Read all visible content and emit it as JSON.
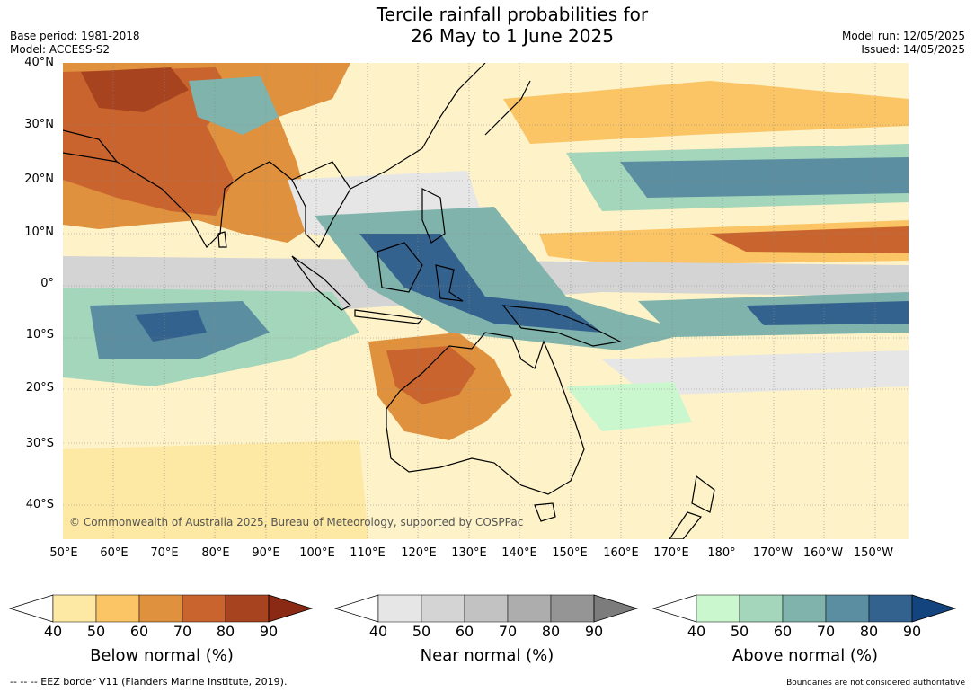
{
  "header": {
    "title_line1": "Tercile rainfall probabilities for",
    "title_line2": "26 May to 1 June 2025",
    "base_period": "Base period: 1981-2018",
    "model": "Model: ACCESS-S2",
    "model_run": "Model run: 12/05/2025",
    "issued": "Issued: 14/05/2025"
  },
  "map": {
    "lat_labels": [
      "40°N",
      "30°N",
      "20°N",
      "10°N",
      "0°",
      "10°S",
      "20°S",
      "30°S",
      "40°S"
    ],
    "lon_labels": [
      "50°E",
      "60°E",
      "70°E",
      "80°E",
      "90°E",
      "100°E",
      "110°E",
      "120°E",
      "130°E",
      "140°E",
      "150°E",
      "160°E",
      "170°E",
      "180°",
      "170°W",
      "160°W",
      "150°W"
    ],
    "copyright": "© Commonwealth of Australia 2025, Bureau of Meteorology, supported by COSPPac",
    "colors": {
      "below": [
        "#fde9a3",
        "#fbc464",
        "#e0913e",
        "#c9642e",
        "#a8431f",
        "#8a2a14"
      ],
      "near": [
        "#e6e6e6",
        "#d4d4d4",
        "#c2c2c2",
        "#adadad",
        "#959595",
        "#7c7c7c"
      ],
      "above": [
        "#cbf7cf",
        "#a4d6bb",
        "#7fb3ab",
        "#5a8ea0",
        "#34628f",
        "#14447d"
      ]
    }
  },
  "legend": {
    "below": {
      "label": "Below normal (%)",
      "ticks": [
        "40",
        "50",
        "60",
        "70",
        "80",
        "90"
      ]
    },
    "near": {
      "label": "Near normal (%)",
      "ticks": [
        "40",
        "50",
        "60",
        "70",
        "80",
        "90"
      ]
    },
    "above": {
      "label": "Above normal (%)",
      "ticks": [
        "40",
        "50",
        "60",
        "70",
        "80",
        "90"
      ]
    }
  },
  "footer": {
    "eez_note": "--  --  -- EEZ border V11 (Flanders Marine Institute, 2019).",
    "disclaimer": "Boundaries are not considered authoritative"
  }
}
